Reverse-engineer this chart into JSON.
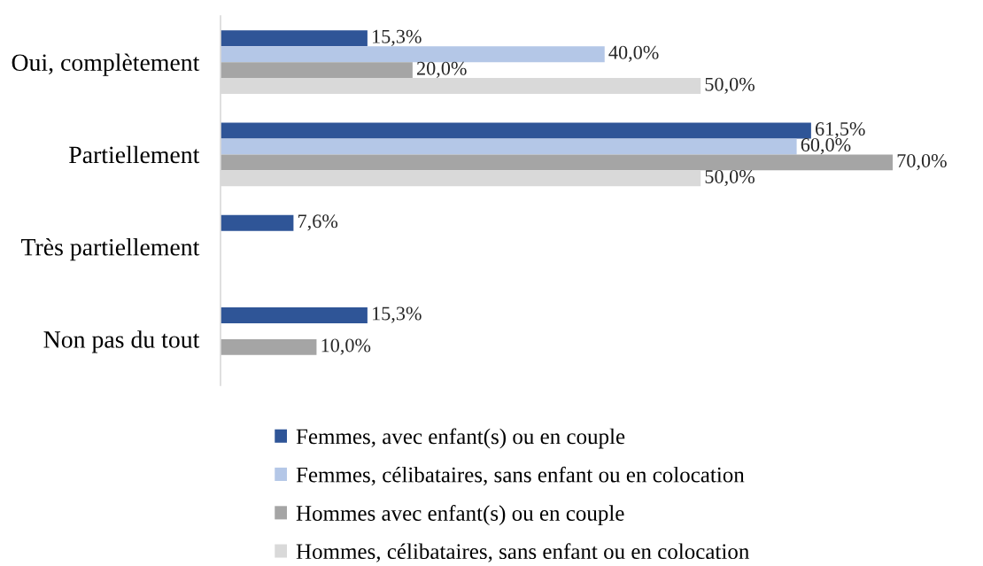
{
  "chart_data": {
    "type": "bar",
    "orientation": "horizontal",
    "categories": [
      "Oui, complètement",
      "Partiellement",
      "Très partiellement",
      "Non pas du tout"
    ],
    "series": [
      {
        "name": "Femmes, avec enfant(s) ou en couple",
        "color": "#2f5597",
        "values": [
          15.3,
          61.5,
          7.6,
          15.3
        ],
        "value_labels": [
          "15,3%",
          "61,5%",
          "7,6%",
          "15,3%"
        ]
      },
      {
        "name": "Femmes, célibataires, sans enfant ou en colocation",
        "color": "#b4c7e7",
        "values": [
          40.0,
          60.0,
          null,
          null
        ],
        "value_labels": [
          "40,0%",
          "60,0%",
          null,
          null
        ]
      },
      {
        "name": "Hommes avec enfant(s) ou en couple",
        "color": "#a5a5a5",
        "values": [
          20.0,
          70.0,
          null,
          10.0
        ],
        "value_labels": [
          "20,0%",
          "70,0%",
          null,
          "10,0%"
        ]
      },
      {
        "name": "Hommes, célibataires, sans enfant ou en colocation",
        "color": "#d9d9d9",
        "values": [
          50.0,
          50.0,
          null,
          null
        ],
        "value_labels": [
          "50,0%",
          "50,0%",
          null,
          null
        ]
      }
    ],
    "tick_labels": "y",
    "legend": "bottom"
  }
}
